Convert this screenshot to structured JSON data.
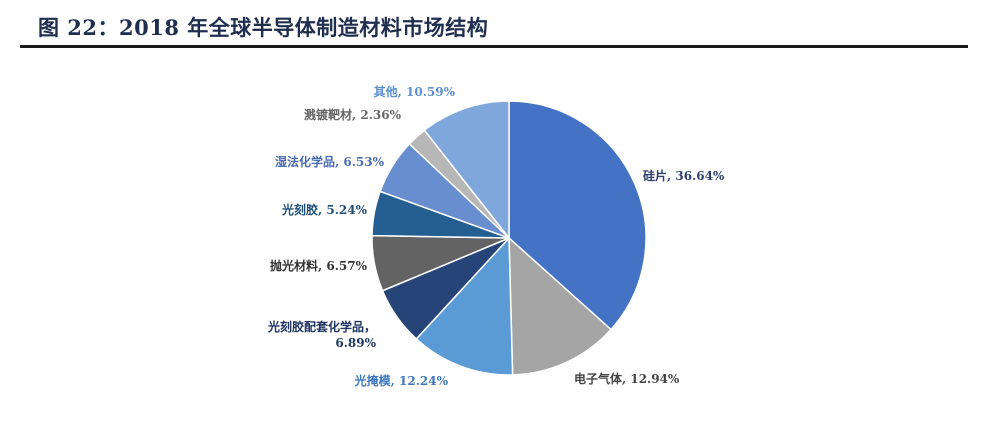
{
  "figure": {
    "title": "图 22：2018 年全球半导体制造材料市场结构"
  },
  "chart_data": {
    "type": "pie",
    "title": "",
    "start_angle_deg": 0,
    "direction": "clockwise",
    "slices": [
      {
        "label": "硅片",
        "value": 36.64,
        "display": "硅片, 36.64%",
        "color": "#4472c4",
        "label_color": "#2f3f6e"
      },
      {
        "label": "电子气体",
        "value": 12.94,
        "display": "电子气体, 12.94%",
        "color": "#a5a5a5",
        "label_color": "#444444"
      },
      {
        "label": "光掩模",
        "value": 12.24,
        "display": "光掩模, 12.24%",
        "color": "#5b9bd5",
        "label_color": "#3f78b8"
      },
      {
        "label": "光刻胶配套化学品",
        "value": 6.89,
        "display": "光刻胶配套化学品，\n6.89%",
        "color": "#264478",
        "label_color": "#1f3563"
      },
      {
        "label": "抛光材料",
        "value": 6.57,
        "display": "抛光材料, 6.57%",
        "color": "#636363",
        "label_color": "#333333"
      },
      {
        "label": "光刻胶",
        "value": 5.24,
        "display": "光刻胶, 5.24%",
        "color": "#255e91",
        "label_color": "#1f4f7a"
      },
      {
        "label": "湿法化学品",
        "value": 6.53,
        "display": "湿法化学品, 6.53%",
        "color": "#698ed0",
        "label_color": "#4a6bb0"
      },
      {
        "label": "溅镀靶材",
        "value": 2.36,
        "display": "溅镀靶材, 2.36%",
        "color": "#b7b7b7",
        "label_color": "#666666"
      },
      {
        "label": "其他",
        "value": 10.59,
        "display": "其他, 10.59%",
        "color": "#7fa7dc",
        "label_color": "#5b8fd0"
      }
    ]
  }
}
